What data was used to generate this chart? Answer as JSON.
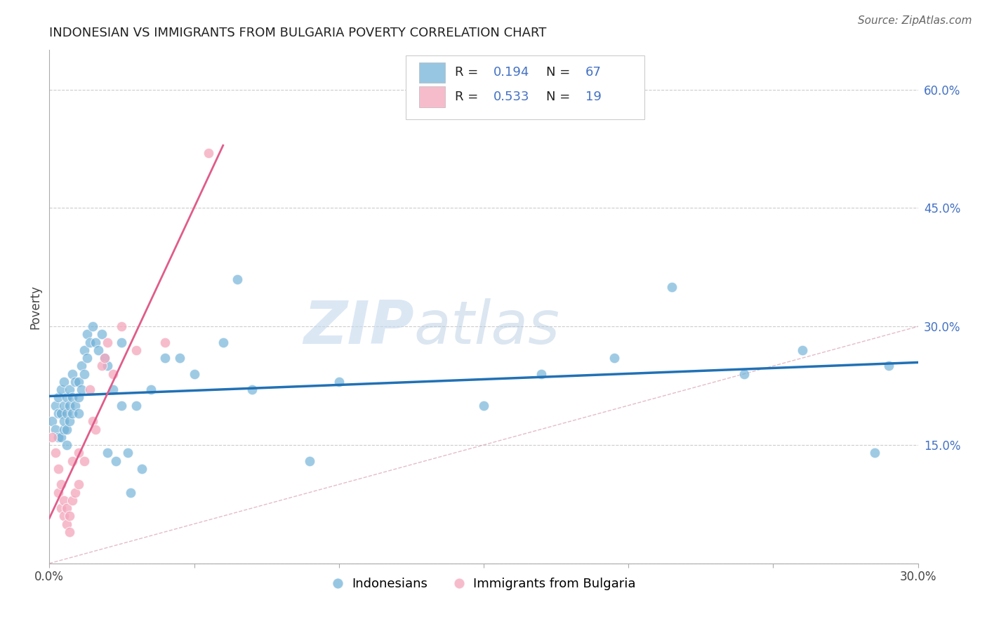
{
  "title": "INDONESIAN VS IMMIGRANTS FROM BULGARIA POVERTY CORRELATION CHART",
  "source": "Source: ZipAtlas.com",
  "ylabel": "Poverty",
  "xlim": [
    0.0,
    0.3
  ],
  "ylim": [
    0.0,
    0.65
  ],
  "yticks_right": [
    0.0,
    0.15,
    0.3,
    0.45,
    0.6
  ],
  "blue_color": "#6baed6",
  "pink_color": "#f4a6bc",
  "blue_line_color": "#2171b5",
  "pink_line_color": "#e05c8a",
  "diagonal_color": "#cccccc",
  "background_color": "#ffffff",
  "grid_color": "#cccccc",
  "watermark_zip": "ZIP",
  "watermark_atlas": "atlas",
  "indonesian_x": [
    0.001,
    0.002,
    0.002,
    0.003,
    0.003,
    0.003,
    0.004,
    0.004,
    0.004,
    0.005,
    0.005,
    0.005,
    0.005,
    0.006,
    0.006,
    0.006,
    0.006,
    0.007,
    0.007,
    0.007,
    0.008,
    0.008,
    0.008,
    0.009,
    0.009,
    0.01,
    0.01,
    0.01,
    0.011,
    0.011,
    0.012,
    0.012,
    0.013,
    0.013,
    0.014,
    0.015,
    0.016,
    0.017,
    0.018,
    0.019,
    0.02,
    0.02,
    0.022,
    0.023,
    0.025,
    0.025,
    0.027,
    0.028,
    0.03,
    0.032,
    0.035,
    0.04,
    0.045,
    0.05,
    0.06,
    0.065,
    0.07,
    0.09,
    0.1,
    0.15,
    0.17,
    0.195,
    0.215,
    0.24,
    0.26,
    0.285,
    0.29
  ],
  "indonesian_y": [
    0.18,
    0.17,
    0.2,
    0.16,
    0.19,
    0.21,
    0.16,
    0.19,
    0.22,
    0.17,
    0.18,
    0.2,
    0.23,
    0.17,
    0.19,
    0.21,
    0.15,
    0.2,
    0.22,
    0.18,
    0.19,
    0.21,
    0.24,
    0.2,
    0.23,
    0.19,
    0.21,
    0.23,
    0.22,
    0.25,
    0.24,
    0.27,
    0.26,
    0.29,
    0.28,
    0.3,
    0.28,
    0.27,
    0.29,
    0.26,
    0.25,
    0.14,
    0.22,
    0.13,
    0.2,
    0.28,
    0.14,
    0.09,
    0.2,
    0.12,
    0.22,
    0.26,
    0.26,
    0.24,
    0.28,
    0.36,
    0.22,
    0.13,
    0.23,
    0.2,
    0.24,
    0.26,
    0.35,
    0.24,
    0.27,
    0.14,
    0.25
  ],
  "bulgaria_x": [
    0.001,
    0.002,
    0.003,
    0.003,
    0.004,
    0.004,
    0.005,
    0.005,
    0.006,
    0.006,
    0.007,
    0.007,
    0.008,
    0.008,
    0.009,
    0.01,
    0.01,
    0.012,
    0.014,
    0.015,
    0.016,
    0.018,
    0.019,
    0.02,
    0.022,
    0.025,
    0.03,
    0.04,
    0.055
  ],
  "bulgaria_y": [
    0.16,
    0.14,
    0.12,
    0.09,
    0.1,
    0.07,
    0.08,
    0.06,
    0.07,
    0.05,
    0.06,
    0.04,
    0.08,
    0.13,
    0.09,
    0.1,
    0.14,
    0.13,
    0.22,
    0.18,
    0.17,
    0.25,
    0.26,
    0.28,
    0.24,
    0.3,
    0.27,
    0.28,
    0.52
  ]
}
